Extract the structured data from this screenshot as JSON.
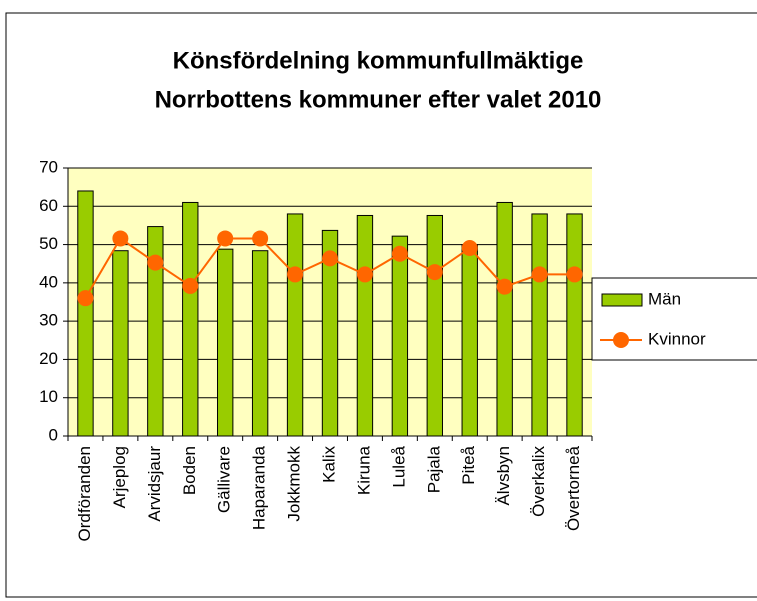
{
  "chart_data": {
    "type": "bar",
    "title": [
      "Könsfördelning kommunfullmäktige",
      "Norrbottens kommuner efter valet 2010"
    ],
    "categories": [
      "Ordföranden",
      "Arjeplog",
      "Arvidsjaur",
      "Boden",
      "Gällivare",
      "Haparanda",
      "Jokkmokk",
      "Kalix",
      "Kiruna",
      "Luleå",
      "Pajala",
      "Piteå",
      "Älvsbyn",
      "Överkalix",
      "Övertorneå"
    ],
    "series": [
      {
        "name": "Män",
        "type": "bar",
        "color": "#99cc00",
        "values": [
          64,
          48.4,
          54.7,
          61,
          48.8,
          48.4,
          58,
          53.7,
          57.6,
          52.2,
          57.6,
          50,
          61,
          58,
          58
        ]
      },
      {
        "name": "Kvinnor",
        "type": "line",
        "color": "#ff6600",
        "values": [
          36,
          51.6,
          45.3,
          39.2,
          51.6,
          51.6,
          42.2,
          46.4,
          42.2,
          47.6,
          42.8,
          49.1,
          39,
          42.2,
          42.2
        ]
      }
    ],
    "ylim": [
      0,
      70
    ],
    "yticks": [
      0,
      10,
      20,
      30,
      40,
      50,
      60,
      70
    ],
    "grid": true,
    "legend": "right"
  }
}
